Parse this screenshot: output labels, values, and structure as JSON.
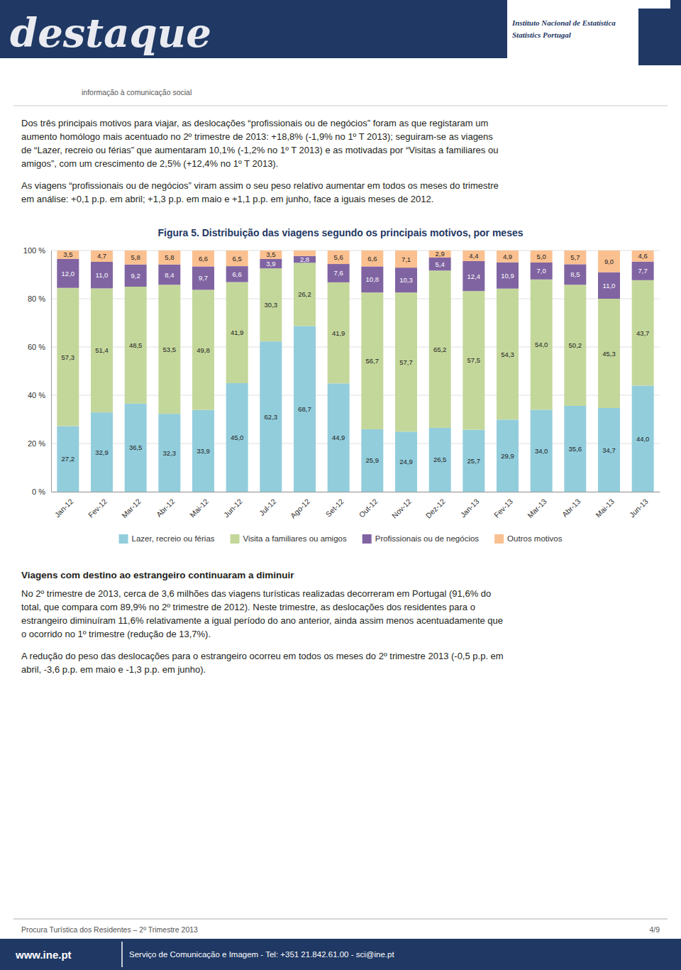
{
  "page": {
    "brand": "destaque",
    "ine_line1": "Instituto Nacional de Estatística",
    "ine_line2": "Statistics Portugal",
    "header_info": "informação à comunicação social",
    "para1_lines": [
      "Dos três principais motivos para viajar, as deslocações “profissionais ou de negócios” foram as que registaram um",
      "aumento homólogo mais acentuado no 2º trimestre de 2013: +18,8% (-1,9% no 1º T 2013); seguiram-se as viagens",
      "de “Lazer, recreio ou férias” que aumentaram 10,1% (-1,2% no 1º T 2013) e as motivadas por “Visitas a familiares ou",
      "amigos”, com um crescimento de 2,5% (+12,4% no 1º T 2013)."
    ],
    "para2_lines": [
      "As viagens “profissionais ou de negócios” viram assim o seu peso relativo aumentar em todos os meses do trimestre",
      "em análise: +0,1 p.p. em abril; +1,3 p.p. em maio e +1,1 p.p. em junho, face a iguais meses de 2012."
    ],
    "section2_title": "Viagens com destino ao estrangeiro continuaram a diminuir",
    "section2_para1_lines": [
      "No 2º trimestre de 2013, cerca de 3,6 milhões das viagens turísticas realizadas decorreram em Portugal (91,6% do",
      "total, que compara com 89,9% no 2º trimestre de 2012). Neste trimestre, as deslocações dos residentes para o",
      "estrangeiro diminuíram 11,6% relativamente a igual período do ano anterior, ainda assim menos acentuadamente que",
      "o ocorrido no 1º trimestre (redução de 13,7%)."
    ],
    "section2_para2_lines": [
      "A redução do peso das deslocações para o estrangeiro ocorreu em todos os meses do 2º trimestre 2013 (-0,5 p.p. em",
      "abril, -3,6 p.p. em maio e -1,3 p.p. em junho)."
    ],
    "footer_left": "Procura Turística dos Residentes – 2º Trimestre 2013",
    "footer_right": "4/9",
    "footer_website": "www.ine.pt",
    "footer_contact": "Serviço de Comunicação e Imagem - Tel: +351 21.842.61.00 - sci@ine.pt"
  },
  "chart_data": {
    "type": "bar",
    "stacked": true,
    "title": "Figura 5. Distribuição das viagens segundo os principais motivos, por meses",
    "categories": [
      "Jan-12",
      "Fev-12",
      "Mar-12",
      "Abr-12",
      "Mai-12",
      "Jun-12",
      "Jul-12",
      "Ago-12",
      "Set-12",
      "Out-12",
      "Nov-12",
      "Dez-12",
      "Jan-13",
      "Fev-13",
      "Mar-13",
      "Abr-13",
      "Mai-13",
      "Jun-13"
    ],
    "series": [
      {
        "name": "Lazer, recreio ou férias",
        "color": "#92CDDC",
        "values": [
          27.2,
          32.9,
          36.5,
          32.3,
          33.9,
          45.0,
          62.3,
          68.7,
          44.9,
          25.9,
          24.9,
          26.5,
          25.7,
          29.9,
          34.0,
          35.6,
          34.7,
          44.0
        ],
        "value_labels": [
          "27,2",
          "32,9",
          "36,5",
          "32,3",
          "33,9",
          "45,0",
          "62,3",
          "68,7",
          "44,9",
          "25,9",
          "24,9",
          "26,5",
          "25,7",
          "29,9",
          "34,0",
          "35,6",
          "34,7",
          "44,0"
        ]
      },
      {
        "name": "Visita a familiares ou amigos",
        "color": "#C4D79B",
        "values": [
          57.3,
          51.4,
          48.5,
          53.5,
          49.8,
          41.9,
          30.3,
          26.2,
          41.9,
          56.7,
          57.7,
          65.2,
          57.5,
          54.3,
          54.0,
          50.2,
          45.3,
          43.7
        ],
        "value_labels": [
          "57,3",
          "51,4",
          "48,5",
          "53,5",
          "49,8",
          "41,9",
          "30,3",
          "26,2",
          "41,9",
          "56,7",
          "57,7",
          "65,2",
          "57,5",
          "54,3",
          "54,0",
          "50,2",
          "45,3",
          "43,7"
        ]
      },
      {
        "name": "Profissionais ou de negócios",
        "color": "#8064A2",
        "values": [
          12.0,
          11.0,
          9.2,
          8.4,
          9.7,
          6.6,
          3.9,
          2.8,
          7.6,
          10.8,
          10.3,
          5.4,
          12.4,
          10.9,
          7.0,
          8.5,
          11.0,
          7.7
        ],
        "value_labels": [
          "12,0",
          "11,0",
          "9,2",
          "8,4",
          "9,7",
          "6,6",
          "3,9",
          "2,8",
          "7,6",
          "10,8",
          "10,3",
          "5,4",
          "12,4",
          "10,9",
          "7,0",
          "8,5",
          "11,0",
          "7,7"
        ]
      },
      {
        "name": "Outros motivos",
        "color": "#FAC090",
        "values": [
          3.5,
          4.7,
          5.8,
          5.8,
          6.6,
          6.5,
          3.5,
          2.3,
          5.6,
          6.6,
          7.1,
          2.9,
          4.4,
          4.9,
          5.0,
          5.7,
          9.0,
          4.6
        ],
        "value_labels": [
          "3,5",
          "4,7",
          "5,8",
          "5,8",
          "6,6",
          "6,5",
          "3,5",
          null,
          "5,6",
          "6,6",
          "7,1",
          "2,9",
          "4,4",
          "4,9",
          "5,0",
          "5,7",
          "9,0",
          "4,6"
        ]
      }
    ],
    "ylim": [
      0,
      100
    ],
    "yticks": [
      {
        "value": 0,
        "label": "0 %"
      },
      {
        "value": 20,
        "label": "20 %"
      },
      {
        "value": 40,
        "label": "40 %"
      },
      {
        "value": 60,
        "label": "60 %"
      },
      {
        "value": 80,
        "label": "80 %"
      },
      {
        "value": 100,
        "label": "100 %"
      }
    ],
    "grid": true,
    "data_labels": true,
    "legend": "bottom"
  }
}
